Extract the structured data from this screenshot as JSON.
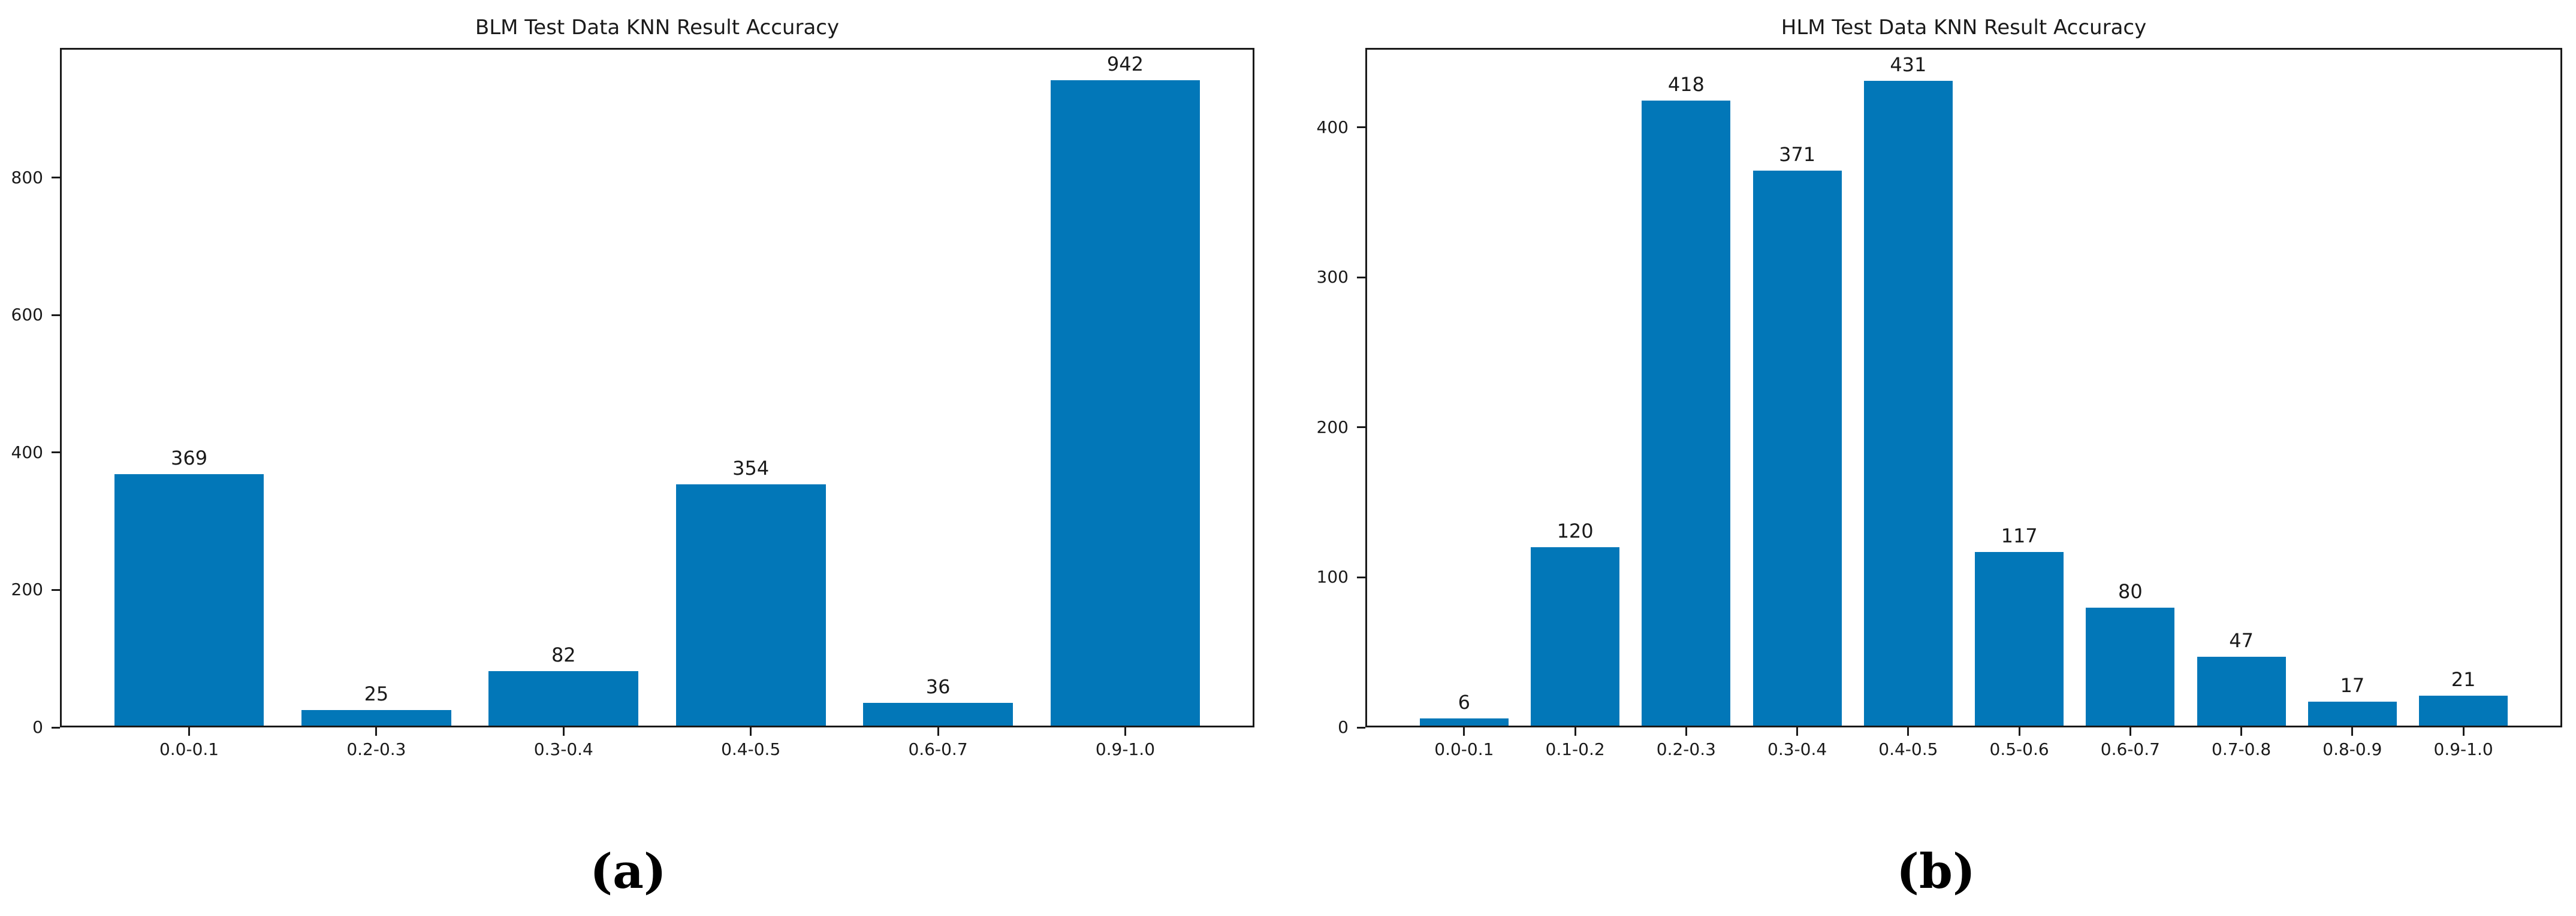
{
  "figure": {
    "background": "#ffffff",
    "bar_color": "#0277b8",
    "spine_color": "#1a1a1a",
    "text_color": "#1a1a1a"
  },
  "captions": {
    "a": "(a)",
    "b": "(b)"
  },
  "chart_data": [
    {
      "type": "bar",
      "title": "BLM Test Data KNN Result Accuracy",
      "categories": [
        "0.0-0.1",
        "0.2-0.3",
        "0.3-0.4",
        "0.4-0.5",
        "0.6-0.7",
        "0.9-1.0"
      ],
      "values": [
        369,
        25,
        82,
        354,
        36,
        942
      ],
      "value_labels": [
        "369",
        "25",
        "82",
        "354",
        "36",
        "942"
      ],
      "xlabel": "",
      "ylabel": "",
      "yticks": [
        0,
        200,
        400,
        600,
        800
      ],
      "ylim": [
        0,
        989
      ],
      "grid": false,
      "legend": "none",
      "bar_width_fraction": 0.8,
      "caption": "(a)"
    },
    {
      "type": "bar",
      "title": "HLM Test Data KNN Result Accuracy",
      "categories": [
        "0.0-0.1",
        "0.1-0.2",
        "0.2-0.3",
        "0.3-0.4",
        "0.4-0.5",
        "0.5-0.6",
        "0.6-0.7",
        "0.7-0.8",
        "0.8-0.9",
        "0.9-1.0"
      ],
      "values": [
        6,
        120,
        418,
        371,
        431,
        117,
        80,
        47,
        17,
        21
      ],
      "value_labels": [
        "6",
        "120",
        "418",
        "371",
        "431",
        "117",
        "80",
        "47",
        "17",
        "21"
      ],
      "xlabel": "",
      "ylabel": "",
      "yticks": [
        0,
        100,
        200,
        300,
        400
      ],
      "ylim": [
        0,
        453
      ],
      "grid": false,
      "legend": "none",
      "bar_width_fraction": 0.8,
      "caption": "(b)"
    }
  ]
}
